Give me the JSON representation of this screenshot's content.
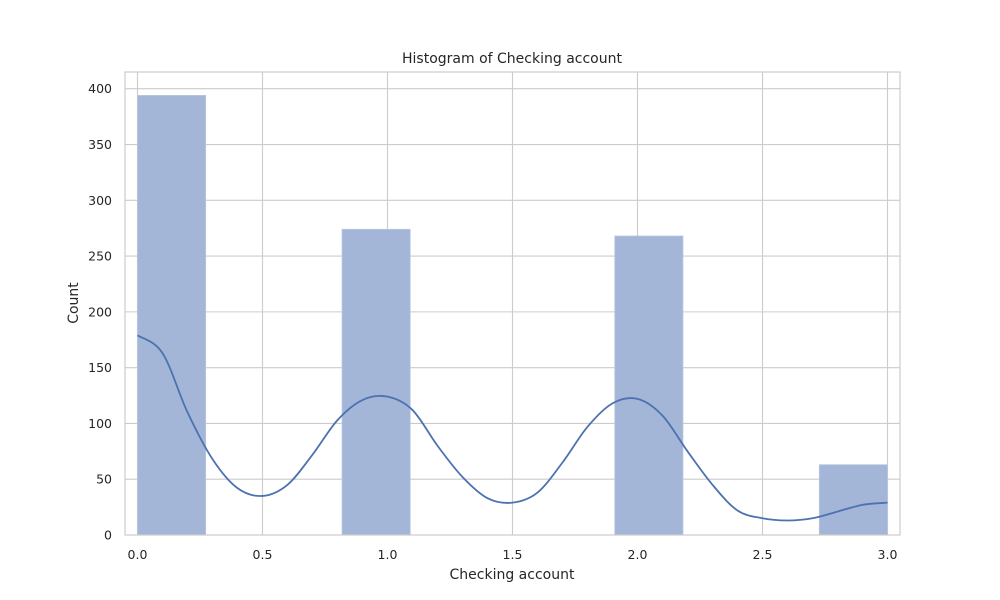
{
  "chart_data": {
    "type": "bar",
    "title": "Histogram of Checking account",
    "xlabel": "Checking account",
    "ylabel": "Count",
    "xlim": [
      -0.05,
      3.05
    ],
    "ylim": [
      0,
      415
    ],
    "xticks": [
      "0.0",
      "0.5",
      "1.0",
      "1.5",
      "2.0",
      "2.5",
      "3.0"
    ],
    "yticks": [
      "0",
      "50",
      "100",
      "150",
      "200",
      "250",
      "300",
      "350",
      "400"
    ],
    "grid": true,
    "bars": [
      {
        "x0": 0.0,
        "x1": 0.2727,
        "value": 394
      },
      {
        "x0": 0.8182,
        "x1": 1.0909,
        "value": 274
      },
      {
        "x0": 1.9091,
        "x1": 2.1818,
        "value": 268
      },
      {
        "x0": 2.7273,
        "x1": 3.0,
        "value": 63
      }
    ],
    "kde": {
      "x": [
        0.0,
        0.1,
        0.2,
        0.3,
        0.4,
        0.5,
        0.6,
        0.7,
        0.8,
        0.9,
        1.0,
        1.1,
        1.2,
        1.3,
        1.4,
        1.5,
        1.6,
        1.7,
        1.8,
        1.9,
        2.0,
        2.1,
        2.2,
        2.3,
        2.4,
        2.5,
        2.6,
        2.7,
        2.8,
        2.9,
        3.0
      ],
      "y": [
        179,
        163,
        110,
        68,
        42,
        35,
        45,
        72,
        103,
        121,
        124,
        112,
        80,
        52,
        33,
        29,
        38,
        65,
        97,
        118,
        122,
        107,
        75,
        45,
        22,
        15,
        13,
        15,
        21,
        27,
        29
      ]
    },
    "colors": {
      "bar": "#a3b6d7",
      "kde": "#4c72b0"
    }
  }
}
